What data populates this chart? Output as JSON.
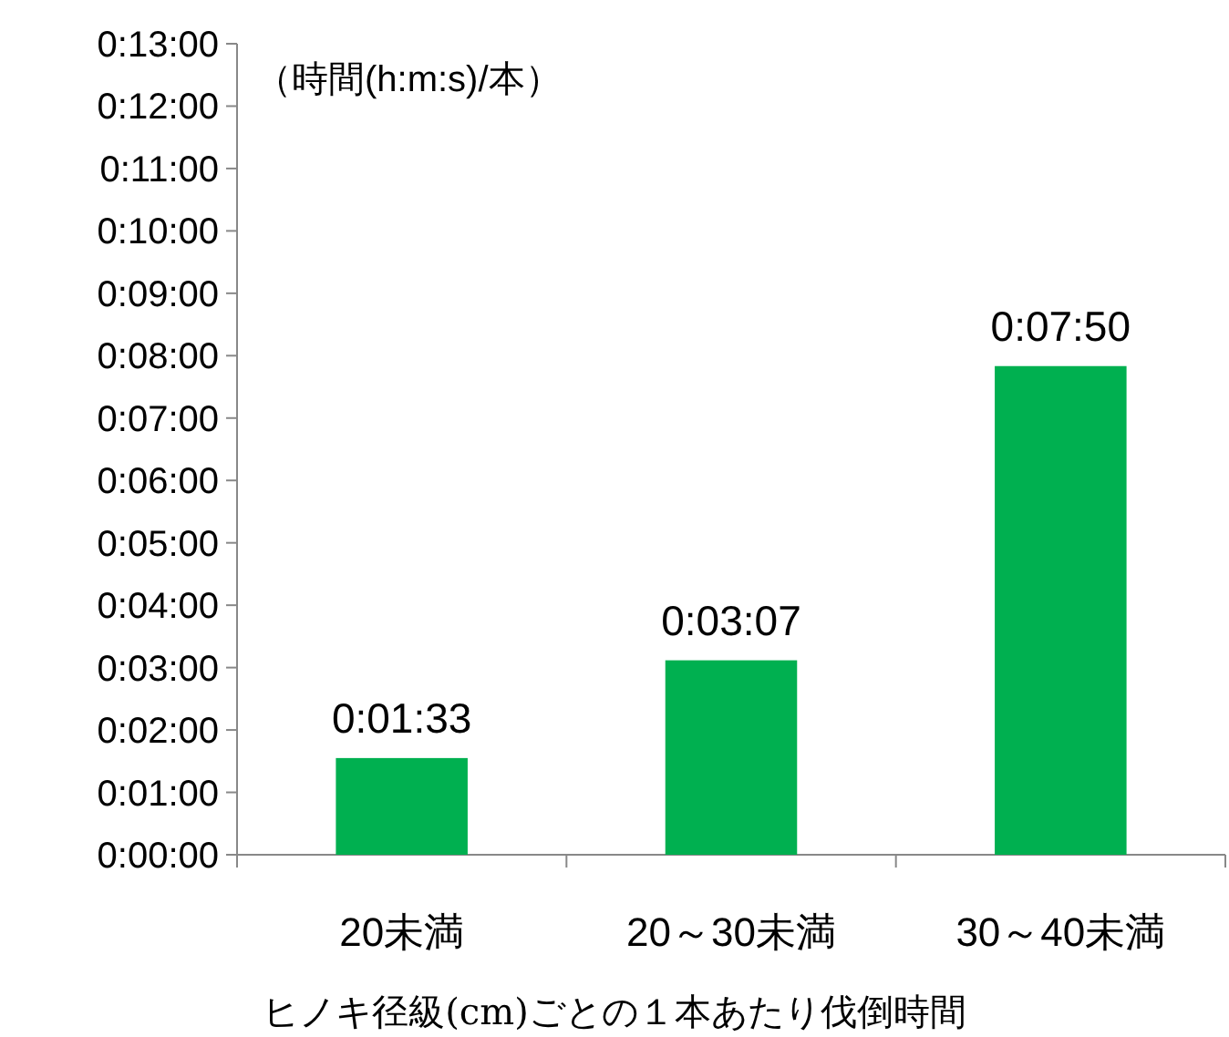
{
  "chart_data": {
    "type": "bar",
    "ylabel": "（時間(h:m:s)/本）",
    "xlabel": "ヒノキ径級(cm)ごとの１本あたり伐倒時間",
    "categories": [
      "20未満",
      "20～30未満",
      "30～40未満"
    ],
    "values": [
      1.55,
      3.117,
      7.833
    ],
    "value_labels": [
      "0:01:33",
      "0:03:07",
      "0:07:50"
    ],
    "color": "#00b050",
    "ylim": [
      0,
      13
    ],
    "yticks": [
      {
        "value": 0,
        "label": "0:00:00"
      },
      {
        "value": 1,
        "label": "0:01:00"
      },
      {
        "value": 2,
        "label": "0:02:00"
      },
      {
        "value": 3,
        "label": "0:03:00"
      },
      {
        "value": 4,
        "label": "0:04:00"
      },
      {
        "value": 5,
        "label": "0:05:00"
      },
      {
        "value": 6,
        "label": "0:06:00"
      },
      {
        "value": 7,
        "label": "0:07:00"
      },
      {
        "value": 8,
        "label": "0:08:00"
      },
      {
        "value": 9,
        "label": "0:09:00"
      },
      {
        "value": 10,
        "label": "0:10:00"
      },
      {
        "value": 11,
        "label": "0:11:00"
      },
      {
        "value": 12,
        "label": "0:12:00"
      },
      {
        "value": 13,
        "label": "0:13:00"
      }
    ]
  }
}
